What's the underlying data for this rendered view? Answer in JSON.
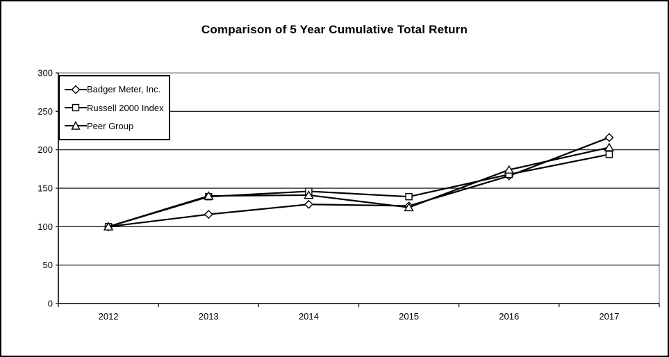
{
  "chart_data": {
    "type": "line",
    "title": "Comparison of 5 Year Cumulative Total Return",
    "categories": [
      "2012",
      "2013",
      "2014",
      "2015",
      "2016",
      "2017"
    ],
    "series": [
      {
        "name": "Badger Meter, Inc.",
        "marker": "diamond",
        "values": [
          100,
          116,
          129,
          127,
          166,
          216
        ]
      },
      {
        "name": "Russell 2000 Index",
        "marker": "square",
        "values": [
          100,
          139,
          146,
          139,
          168,
          194
        ]
      },
      {
        "name": "Peer Group",
        "marker": "triangle",
        "values": [
          100,
          140,
          141,
          125,
          174,
          203
        ]
      }
    ],
    "xlabel": "",
    "ylabel": "",
    "ylim": [
      0,
      300
    ],
    "yticks": [
      0,
      50,
      100,
      150,
      200,
      250,
      300
    ],
    "grid": true,
    "legend_position": "top-left-inside",
    "colors": {
      "line": "#000000",
      "marker_fill": "#ffffff",
      "gridline": "#000000",
      "plot_border": "#808080",
      "text": "#000000",
      "background": "#ffffff"
    }
  }
}
